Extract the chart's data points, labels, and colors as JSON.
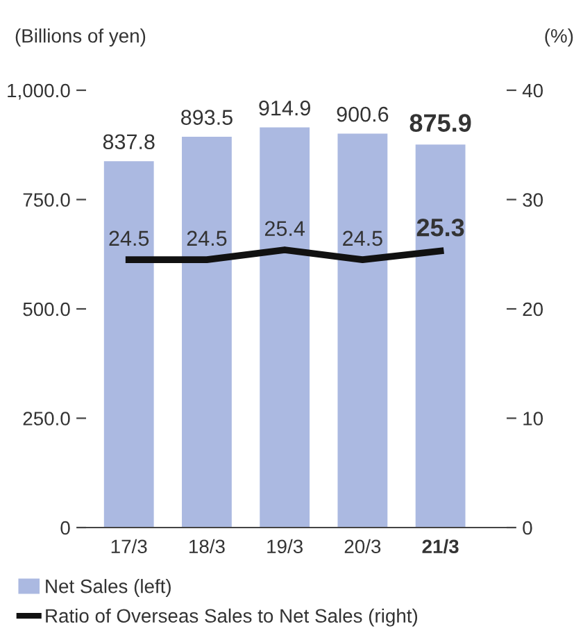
{
  "chart_data": {
    "type": "bar",
    "categories": [
      "17/3",
      "18/3",
      "19/3",
      "20/3",
      "21/3"
    ],
    "ylabel": "(Billions of yen)",
    "y2label": "(%)",
    "series": [
      {
        "name": "Net Sales (left)",
        "color": "#abb9e1",
        "values": [
          837.8,
          893.5,
          914.9,
          900.6,
          875.9
        ]
      },
      {
        "name": "Ratio of Overseas Sales to Net Sales (right)",
        "type": "line",
        "axis": "y2",
        "color": "#111111",
        "values": [
          24.5,
          24.5,
          25.4,
          24.5,
          25.3
        ]
      }
    ],
    "ylim": [
      0,
      1000
    ],
    "yticks": [
      0,
      {
        "value": 250,
        "label": "250.0"
      },
      {
        "value": 500,
        "label": "500.0"
      },
      {
        "value": 750,
        "label": "750.0"
      },
      {
        "value": 1000,
        "label": "1,000.0"
      }
    ],
    "y2lim": [
      0,
      40
    ],
    "y2ticks": [
      0,
      10,
      20,
      30,
      40
    ],
    "data_labels": true,
    "legend": "bottom left",
    "grid": false,
    "marker": "none",
    "line_style": "solid"
  }
}
